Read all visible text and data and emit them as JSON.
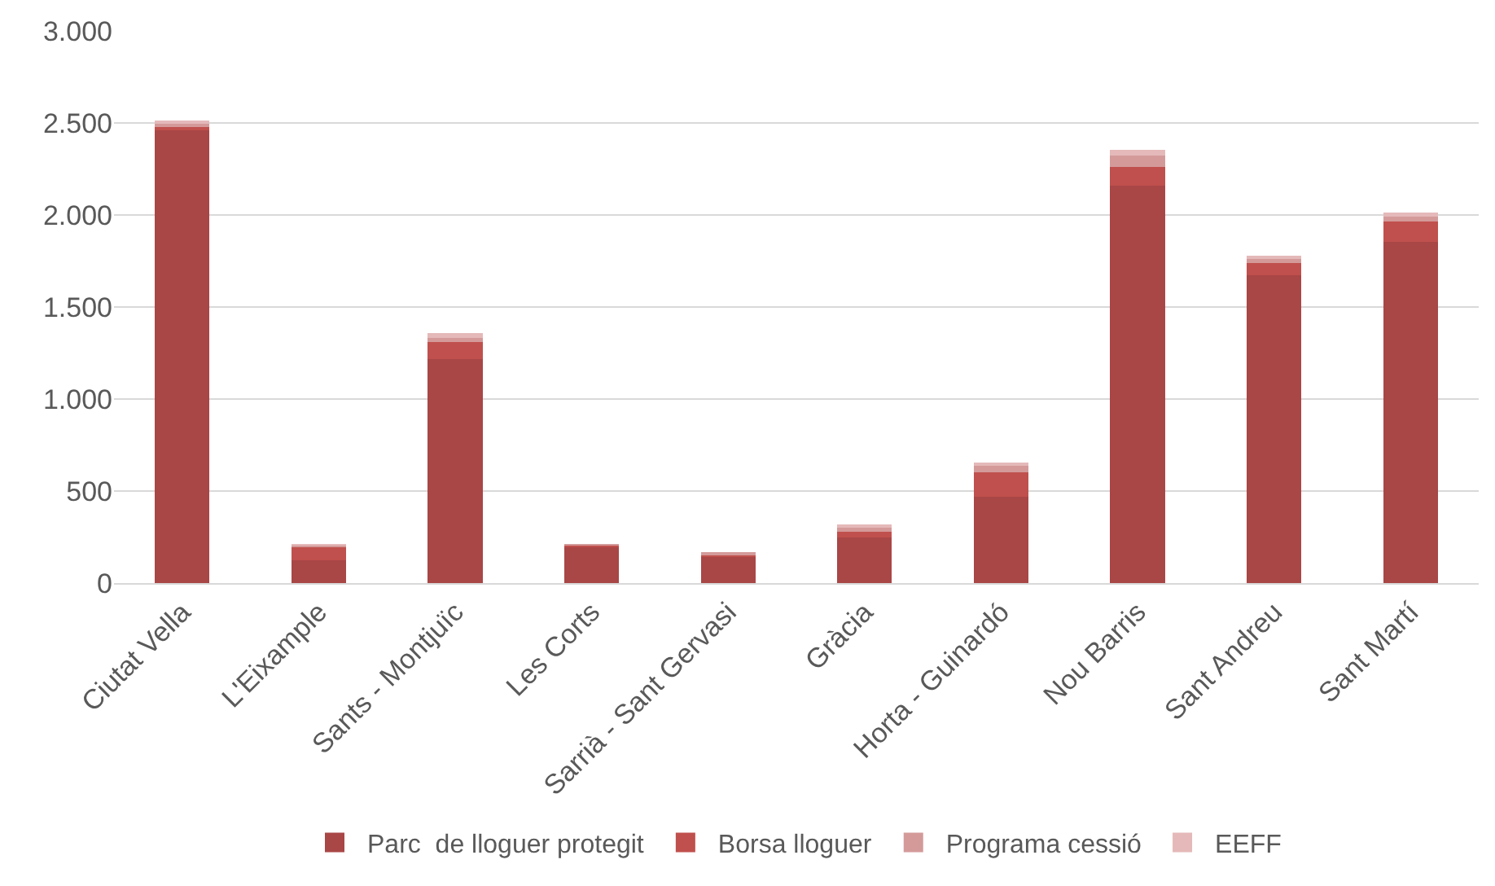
{
  "chart_data": {
    "type": "bar",
    "stacked": true,
    "categories": [
      "Ciutat Vella",
      "L'Eixample",
      "Sants - Montjuïc",
      "Les Corts",
      "Sarrià - Sant Gervasi",
      "Gràcia",
      "Horta - Guinardó",
      "Nou Barris",
      "Sant Andreu",
      "Sant Martí"
    ],
    "series": [
      {
        "name": "Parc  de lloguer protegit",
        "color": "#a94646",
        "values": [
          2460,
          122,
          1216,
          197,
          143,
          248,
          469,
          2158,
          1672,
          1855
        ]
      },
      {
        "name": "Borsa lloguer",
        "color": "#c0504d",
        "values": [
          25,
          75,
          92,
          10,
          12,
          31,
          133,
          102,
          65,
          109
        ]
      },
      {
        "name": "Programa cessió",
        "color": "#d49a9a",
        "values": [
          15,
          10,
          25,
          4,
          5,
          27,
          35,
          61,
          31,
          27
        ]
      },
      {
        "name": "EEFF",
        "color": "#e5b9b9",
        "values": [
          15,
          5,
          25,
          0,
          0,
          7,
          20,
          34,
          12,
          24
        ]
      }
    ],
    "ylim": [
      0,
      3000
    ],
    "yticks": [
      {
        "value": 0,
        "label": "0"
      },
      {
        "value": 500,
        "label": "500"
      },
      {
        "value": 1000,
        "label": "1.000"
      },
      {
        "value": 1500,
        "label": "1.500"
      },
      {
        "value": 2000,
        "label": "2.000"
      },
      {
        "value": 2500,
        "label": "2.500"
      },
      {
        "value": 3000,
        "label": "3.000"
      }
    ],
    "grid": "y",
    "legend": "bottom"
  }
}
